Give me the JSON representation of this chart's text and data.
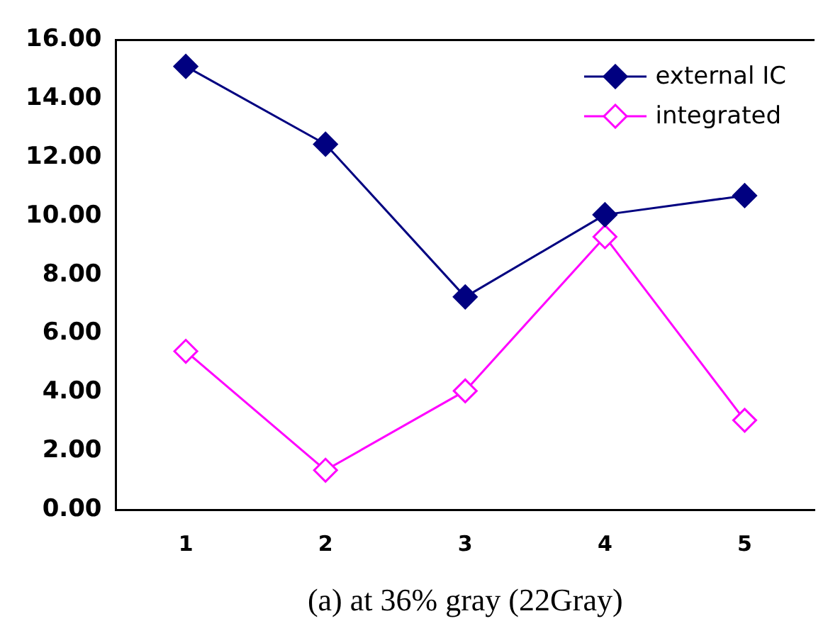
{
  "chart_data": {
    "type": "line",
    "xlabel": "(a) at 36% gray (22Gray)",
    "categories": [
      "1",
      "2",
      "3",
      "4",
      "5"
    ],
    "series": [
      {
        "name": "external IC",
        "color": "#000080",
        "values": [
          15.1,
          12.45,
          7.25,
          10.05,
          10.7
        ],
        "marker": "diamond"
      },
      {
        "name": "integrated",
        "color": "#ff00ff",
        "values": [
          5.4,
          1.35,
          4.05,
          9.3,
          3.05
        ],
        "marker": "diamond"
      }
    ],
    "ylim": [
      0,
      16
    ],
    "yticks": [
      {
        "value": 0,
        "label": "0.00"
      },
      {
        "value": 2,
        "label": "2.00"
      },
      {
        "value": 4,
        "label": "4.00"
      },
      {
        "value": 6,
        "label": "6.00"
      },
      {
        "value": 8,
        "label": "8.00"
      },
      {
        "value": 10,
        "label": "10.00"
      },
      {
        "value": 12,
        "label": "12.00"
      },
      {
        "value": 14,
        "label": "14.00"
      },
      {
        "value": 16,
        "label": "16.00"
      }
    ],
    "grid": false,
    "legend": "top right",
    "line_style": "solid"
  }
}
